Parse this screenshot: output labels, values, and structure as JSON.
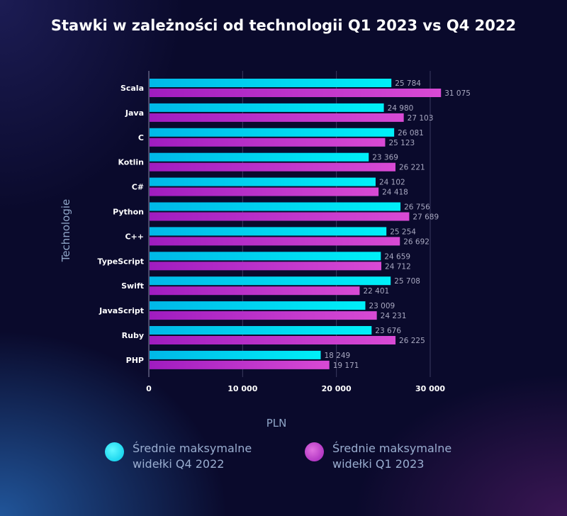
{
  "title": "Stawki w zależności od technologii Q1 2023 vs Q4 2022",
  "chart_data": {
    "type": "bar",
    "orientation": "horizontal",
    "title": "Stawki w zależności od technologii Q1 2023 vs Q4 2022",
    "xlabel": "PLN",
    "ylabel": "Technologie",
    "xlim": [
      0,
      30000
    ],
    "xticks": [
      0,
      10000,
      20000,
      30000
    ],
    "xtick_labels": [
      "0",
      "10 000",
      "20 000",
      "30 000"
    ],
    "grid": true,
    "legend_position": "bottom",
    "categories": [
      "Scala",
      "Java",
      "C",
      "Kotlin",
      "C#",
      "Python",
      "C++",
      "TypeScript",
      "Swift",
      "JavaScript",
      "Ruby",
      "PHP"
    ],
    "series": [
      {
        "name": "Średnie maksymalne widełki Q4 2022",
        "color": "#00e5f5",
        "values": [
          25784,
          24980,
          26081,
          23369,
          24102,
          26756,
          25254,
          24659,
          25708,
          23009,
          23676,
          18249
        ],
        "labels": [
          "25 784",
          "24 980",
          "26 081",
          "23 369",
          "24 102",
          "26 756",
          "25 254",
          "24 659",
          "25 708",
          "23 009",
          "23 676",
          "18 249"
        ]
      },
      {
        "name": "Średnie maksymalne widełki Q1 2023",
        "color": "#cc3ccc",
        "values": [
          31075,
          27103,
          25123,
          26221,
          24418,
          27689,
          26692,
          24712,
          22401,
          24231,
          26225,
          19171
        ],
        "labels": [
          "31 075",
          "27 103",
          "25 123",
          "26 221",
          "24 418",
          "27 689",
          "26 692",
          "24 712",
          "22 401",
          "24 231",
          "26 225",
          "19 171"
        ]
      }
    ]
  },
  "legend": [
    {
      "line1": "Średnie maksymalne",
      "line2": "widełki Q4 2022",
      "color": "#00e5f5"
    },
    {
      "line1": "Średnie maksymalne",
      "line2": "widełki Q1 2023",
      "color": "#cc3ccc"
    }
  ]
}
